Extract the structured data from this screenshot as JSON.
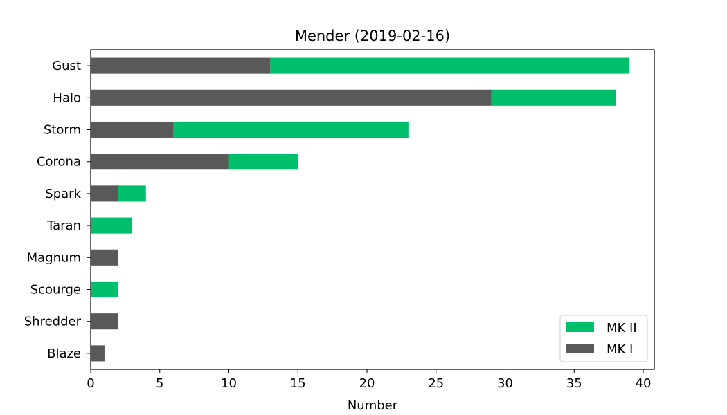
{
  "chart_data": {
    "type": "bar",
    "orientation": "horizontal",
    "stacked": true,
    "title": "Mender (2019-02-16)",
    "xlabel": "Number",
    "ylabel": "",
    "xlim": [
      0,
      40.8
    ],
    "x_ticks": [
      0,
      5,
      10,
      15,
      20,
      25,
      30,
      35,
      40
    ],
    "categories": [
      "Gust",
      "Halo",
      "Storm",
      "Corona",
      "Spark",
      "Taran",
      "Magnum",
      "Scourge",
      "Shredder",
      "Blaze"
    ],
    "series": [
      {
        "name": "MK I",
        "color": "#595959",
        "values": [
          13,
          29,
          6,
          10,
          2,
          0,
          2,
          0,
          2,
          1
        ]
      },
      {
        "name": "MK II",
        "color": "#00bf6a",
        "values": [
          26,
          9,
          17,
          5,
          2,
          3,
          0,
          2,
          0,
          0
        ]
      }
    ],
    "legend": {
      "position": "lower-right",
      "order": [
        "MK II",
        "MK I"
      ]
    },
    "grid": false
  }
}
